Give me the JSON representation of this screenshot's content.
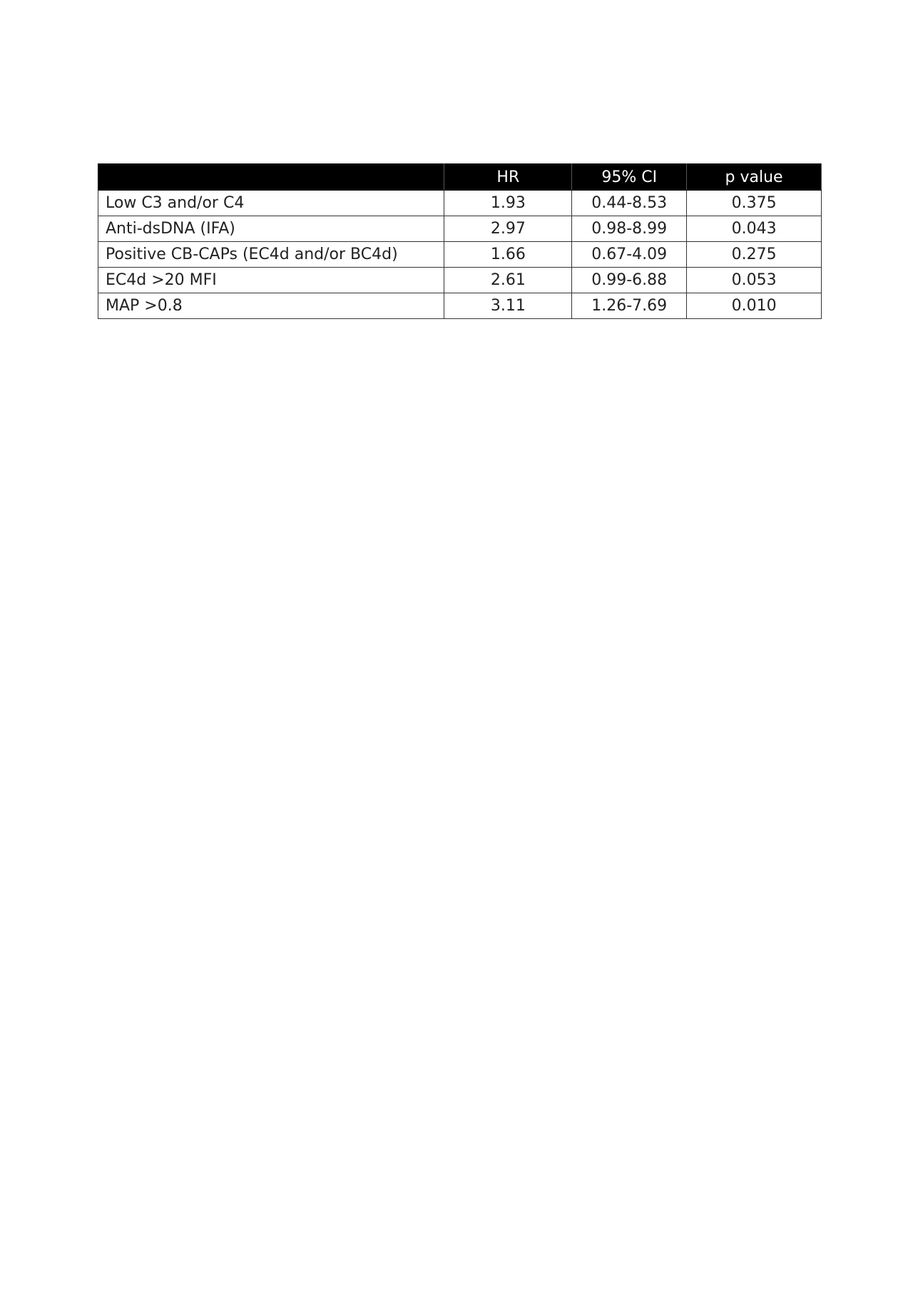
{
  "table": {
    "headers": [
      "",
      "HR",
      "95% CI",
      "p value"
    ],
    "rows": [
      {
        "label": "Low C3 and/or C4",
        "hr": "1.93",
        "ci": "0.44-8.53",
        "p": "0.375"
      },
      {
        "label": "Anti-dsDNA (IFA)",
        "hr": "2.97",
        "ci": "0.98-8.99",
        "p": "0.043"
      },
      {
        "label": "Positive CB-CAPs (EC4d and/or BC4d)",
        "hr": "1.66",
        "ci": "0.67-4.09",
        "p": "0.275"
      },
      {
        "label": "EC4d >20 MFI",
        "hr": "2.61",
        "ci": "0.99-6.88",
        "p": "0.053"
      },
      {
        "label": "MAP >0.8",
        "hr": "3.11",
        "ci": "1.26-7.69",
        "p": "0.010"
      }
    ]
  }
}
